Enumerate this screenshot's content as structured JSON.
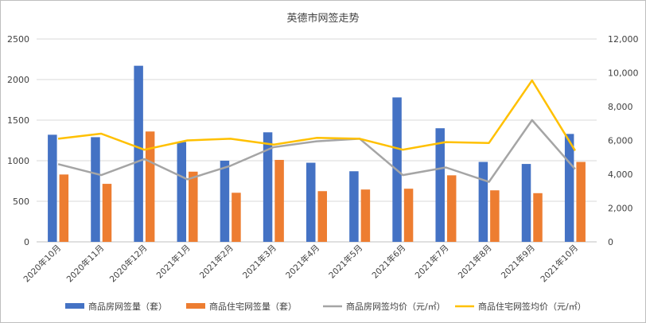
{
  "chart_data": {
    "type": "bar",
    "title": "英德市网签走势",
    "categories": [
      "2020年10月",
      "2020年11月",
      "2020年12月",
      "2021年1月",
      "2021年2月",
      "2021年3月",
      "2021年4月",
      "2021年5月",
      "2021年6月",
      "2021年7月",
      "2021年8月",
      "2021年9月",
      "2021年10月"
    ],
    "ylim_left": [
      0,
      2500
    ],
    "yticks_left": [
      "0",
      "500",
      "1000",
      "1500",
      "2000",
      "2500"
    ],
    "ylim_right": [
      0,
      12000
    ],
    "yticks_right": [
      "0",
      "2,000",
      "4,000",
      "6,000",
      "8,000",
      "10,000",
      "12,000"
    ],
    "grid": true,
    "legend": "bottom",
    "series": [
      {
        "name": "商品房网签量（套）",
        "kind": "bar",
        "axis": "left",
        "color": "#4472c4",
        "values": [
          1320,
          1290,
          2170,
          1230,
          1000,
          1350,
          975,
          870,
          1780,
          1400,
          985,
          960,
          1330
        ]
      },
      {
        "name": "商品住宅网签量（套）",
        "kind": "bar",
        "axis": "left",
        "color": "#ed7d31",
        "values": [
          830,
          715,
          1360,
          865,
          605,
          1010,
          625,
          645,
          655,
          820,
          635,
          600,
          985
        ]
      },
      {
        "name": "商品房网签均价（元/㎡）",
        "kind": "line",
        "axis": "right",
        "color": "#a5a5a5",
        "values": [
          4600,
          3950,
          4900,
          3700,
          4500,
          5600,
          5950,
          6100,
          3950,
          4400,
          3550,
          7200,
          4300
        ]
      },
      {
        "name": "商品住宅网签均价（元/㎡）",
        "kind": "line",
        "axis": "right",
        "color": "#ffc000",
        "values": [
          6100,
          6400,
          5450,
          6000,
          6100,
          5750,
          6150,
          6100,
          5450,
          5900,
          5850,
          9550,
          5400
        ]
      }
    ]
  }
}
